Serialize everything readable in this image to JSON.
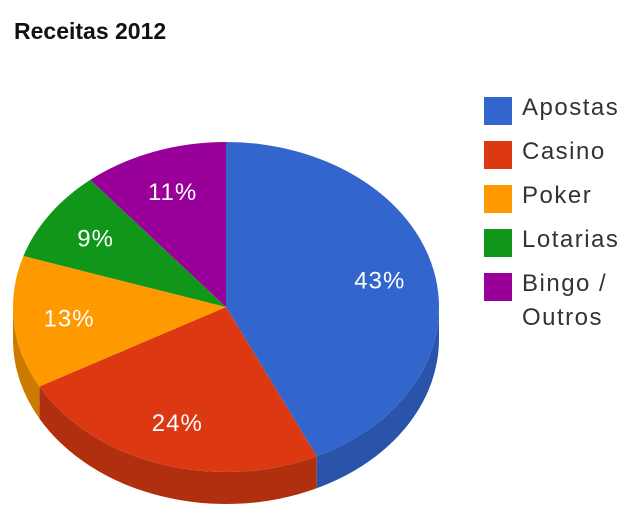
{
  "chart_data": {
    "type": "pie",
    "title": "Receitas 2012",
    "categories": [
      "Apostas",
      "Casino",
      "Poker",
      "Lotarias",
      "Bingo / Outros"
    ],
    "values": [
      43,
      24,
      13,
      9,
      11
    ],
    "labels": [
      "43%",
      "24%",
      "13%",
      "9%",
      "11%"
    ],
    "colors": [
      "#3366cc",
      "#dc3912",
      "#ff9900",
      "#109618",
      "#990099"
    ],
    "side_colors": [
      "#2a54aa",
      "#b02f0f",
      "#cc7a00",
      "#0c7812",
      "#770077"
    ],
    "legend_position": "right",
    "style": "3d"
  }
}
